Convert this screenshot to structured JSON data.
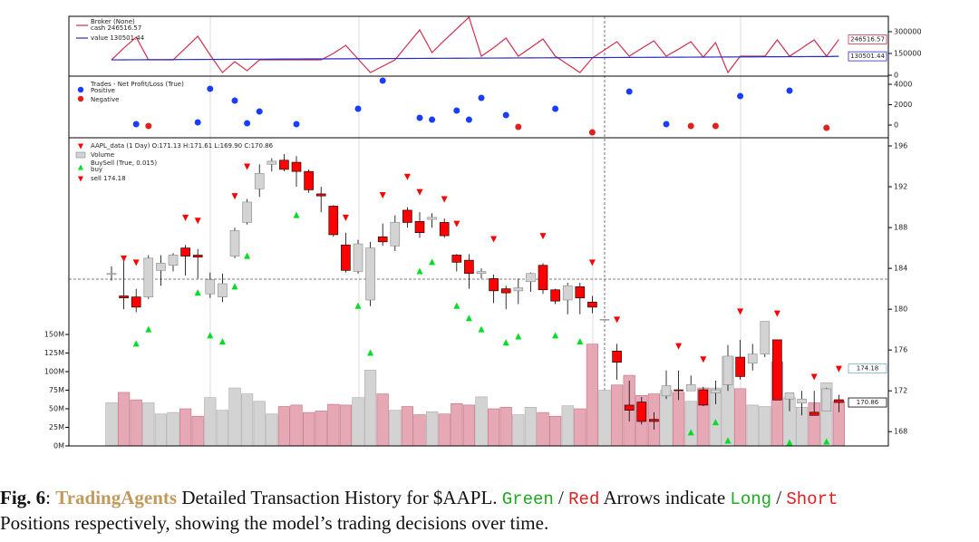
{
  "chart_data": [
    {
      "type": "line",
      "title": "Broker (None)",
      "ylim": [
        -6000,
        406000
      ],
      "yticks": [
        0,
        150000,
        300000
      ],
      "series": [
        {
          "name": "cash 246516.57",
          "color": "#d0304e",
          "values": [
            106250,
            187000,
            262500,
            106250,
            106250,
            106250,
            187000,
            268750,
            140000,
            18750,
            93750,
            31250,
            106250,
            106250,
            106250,
            106250,
            106250,
            106250,
            150000,
            206250,
            112000,
            18750,
            62000,
            106250,
            210000,
            312500,
            156250,
            240000,
            320000,
            400000,
            131250,
            190000,
            256250,
            131250,
            190000,
            250000,
            131250,
            75000,
            18750,
            118750,
            175000,
            231250,
            131250,
            185000,
            237500,
            131250,
            180000,
            231250,
            125000,
            225000,
            18750,
            131250,
            131250,
            131250,
            243750,
            131250,
            187000,
            243750,
            131250,
            246516.57
          ]
        },
        {
          "name": "value 130501.44",
          "color": "#2a2ac0",
          "values": [
            106000,
            106400,
            106800,
            107200,
            107600,
            108000,
            108400,
            108800,
            109200,
            109600,
            110000,
            110400,
            110800,
            111200,
            111600,
            112000,
            112400,
            112800,
            113200,
            113600,
            114000,
            114400,
            114800,
            115200,
            115600,
            116000,
            116400,
            116800,
            117200,
            117600,
            118000,
            118400,
            118800,
            119200,
            119600,
            120000,
            120400,
            120800,
            121200,
            121600,
            122000,
            122400,
            122800,
            123200,
            123600,
            124000,
            124400,
            124800,
            125200,
            125600,
            126000,
            126400,
            126800,
            127200,
            127600,
            128000,
            128400,
            128800,
            129200,
            130501.44
          ]
        }
      ]
    },
    {
      "type": "scatter",
      "title": "Trades - Net Profit/Loss (True)",
      "ylim": [
        -1244,
        4800
      ],
      "yticks": [
        0,
        2000,
        4000
      ],
      "series": [
        {
          "name": "Positive",
          "color": "#1a3cff",
          "values": [
            null,
            null,
            90,
            null,
            null,
            null,
            null,
            270,
            3560,
            null,
            2400,
            180,
            1330,
            null,
            null,
            90,
            null,
            null,
            null,
            null,
            1600,
            null,
            4360,
            null,
            null,
            710,
            530,
            null,
            1420,
            530,
            2670,
            null,
            980,
            null,
            null,
            null,
            1600,
            null,
            null,
            null,
            null,
            null,
            3290,
            null,
            null,
            90,
            null,
            null,
            null,
            null,
            null,
            2840,
            null,
            null,
            null,
            3380,
            null,
            null,
            null,
            null
          ]
        },
        {
          "name": "Negative",
          "color": "#e0201c",
          "values": [
            null,
            null,
            null,
            -90,
            null,
            null,
            null,
            null,
            null,
            null,
            null,
            null,
            null,
            null,
            null,
            null,
            null,
            null,
            null,
            null,
            null,
            null,
            null,
            null,
            null,
            null,
            null,
            null,
            null,
            null,
            null,
            null,
            null,
            -180,
            null,
            null,
            null,
            null,
            null,
            -710,
            null,
            null,
            null,
            null,
            null,
            null,
            null,
            -90,
            null,
            -90,
            null,
            null,
            null,
            null,
            null,
            null,
            null,
            null,
            -270,
            null
          ]
        }
      ]
    },
    {
      "type": "candlestick",
      "title": "AAPL_data (1 Day) O:171.13 H:171.61 L:169.90 C:170.86",
      "legend": [
        "Volume",
        "BuySell (True, 0.015)",
        "buy",
        "sell 174.18"
      ],
      "ylim": [
        166.6,
        196.8
      ],
      "yticks": [
        168,
        172,
        176,
        180,
        184,
        188,
        192,
        196
      ],
      "y2lim": [
        0,
        414.6
      ],
      "y2ticks": [
        {
          "value": 0,
          "label": "0M"
        },
        {
          "value": 25,
          "label": "25M"
        },
        {
          "value": 50,
          "label": "50M"
        },
        {
          "value": 75,
          "label": "75M"
        },
        {
          "value": 100,
          "label": "100M"
        },
        {
          "value": 125,
          "label": "125M"
        },
        {
          "value": 150,
          "label": "150M"
        }
      ],
      "open": [
        183.4,
        181.3,
        181.2,
        181.2,
        183.8,
        184.3,
        186.0,
        185.3,
        181.5,
        181.2,
        185.2,
        188.5,
        191.8,
        194.2,
        194.6,
        194.4,
        193.5,
        191.3,
        190.1,
        186.3,
        183.7,
        180.9,
        187.1,
        186.2,
        189.7,
        188.6,
        188.8,
        188.5,
        185.3,
        184.8,
        183.5,
        183.0,
        182.0,
        181.8,
        182.7,
        184.3,
        181.9,
        180.9,
        182.2,
        180.7,
        179.0,
        175.9,
        170.6,
        170.9,
        169.2,
        171.5,
        172.1,
        172.0,
        172.1,
        171.8,
        172.6,
        175.3,
        174.7,
        175.6,
        177.0,
        171.2,
        170.8,
        169.9,
        170.0,
        171.13
      ],
      "high": [
        184.2,
        184.8,
        182.0,
        185.3,
        185.3,
        185.5,
        186.3,
        185.9,
        183.6,
        183.5,
        188.0,
        190.8,
        194.2,
        194.8,
        195.2,
        195.0,
        193.7,
        192.0,
        190.2,
        187.5,
        186.8,
        186.6,
        188.4,
        189.2,
        190.0,
        189.5,
        189.4,
        188.9,
        185.4,
        185.4,
        184.0,
        183.4,
        182.3,
        183.0,
        183.6,
        184.5,
        182.0,
        182.6,
        182.6,
        181.3,
        179.0,
        176.6,
        173.0,
        171.4,
        169.9,
        174.0,
        174.0,
        173.5,
        172.4,
        173.0,
        176.5,
        177.0,
        176.6,
        178.8,
        177.0,
        171.8,
        172.0,
        172.0,
        172.3,
        171.61
      ],
      "low": [
        182.8,
        180.0,
        179.7,
        181.0,
        182.3,
        183.7,
        183.3,
        183.0,
        181.1,
        180.7,
        185.0,
        188.3,
        191.0,
        193.5,
        193.5,
        192.0,
        191.4,
        189.5,
        187.1,
        183.6,
        183.5,
        180.3,
        186.2,
        185.7,
        188.0,
        187.0,
        188.0,
        187.0,
        183.7,
        182.0,
        183.0,
        180.6,
        180.0,
        180.5,
        181.7,
        181.5,
        180.5,
        179.5,
        179.5,
        179.6,
        179.0,
        173.1,
        169.0,
        168.7,
        168.2,
        171.2,
        171.1,
        172.0,
        170.5,
        170.7,
        172.0,
        173.1,
        174.0,
        175.3,
        171.1,
        170.0,
        169.6,
        169.6,
        170.0,
        169.9
      ],
      "close": [
        183.5,
        181.1,
        180.2,
        185.0,
        184.5,
        185.3,
        185.2,
        185.1,
        182.9,
        182.5,
        187.7,
        190.5,
        193.3,
        194.5,
        193.7,
        193.5,
        191.7,
        191.1,
        187.3,
        183.8,
        186.4,
        186.0,
        186.6,
        188.5,
        188.5,
        187.5,
        189.0,
        187.2,
        184.6,
        183.5,
        183.7,
        181.8,
        181.6,
        182.1,
        183.5,
        181.9,
        180.8,
        182.3,
        181.1,
        180.2,
        179.0,
        174.8,
        170.1,
        169.0,
        169.0,
        172.5,
        172.0,
        172.6,
        170.6,
        172.1,
        175.4,
        173.4,
        175.6,
        178.8,
        171.1,
        171.8,
        171.2,
        169.6,
        172.2,
        170.86
      ],
      "volume": [
        58,
        72,
        62,
        58,
        43,
        45,
        50,
        40,
        65,
        48,
        78,
        70,
        60,
        43,
        53,
        55,
        45,
        47,
        56,
        55,
        65,
        102,
        70,
        48,
        53,
        42,
        46,
        43,
        57,
        55,
        66,
        50,
        52,
        42,
        52,
        45,
        40,
        54,
        50,
        137,
        75,
        82,
        95,
        68,
        70,
        75,
        72,
        60,
        78,
        78,
        120,
        77,
        55,
        53,
        113,
        65,
        52,
        58,
        85,
        60
      ],
      "buy": [
        null,
        null,
        176.6,
        178.0,
        null,
        null,
        null,
        181.6,
        177.4,
        176.8,
        182.2,
        185.2,
        null,
        null,
        null,
        189.2,
        null,
        null,
        null,
        null,
        180.3,
        175.7,
        null,
        null,
        null,
        183.7,
        184.6,
        null,
        180.3,
        179.1,
        178.0,
        null,
        176.7,
        177.3,
        null,
        null,
        177.4,
        null,
        176.8,
        null,
        null,
        null,
        null,
        null,
        null,
        null,
        null,
        167.9,
        null,
        168.9,
        167.1,
        null,
        null,
        null,
        null,
        166.9,
        null,
        null,
        167.0,
        null
      ],
      "sell": [
        null,
        185.0,
        184.6,
        null,
        null,
        null,
        189.0,
        188.7,
        null,
        null,
        191.1,
        194.0,
        null,
        null,
        null,
        null,
        null,
        null,
        null,
        189.0,
        null,
        null,
        191.2,
        null,
        193.0,
        191.5,
        null,
        190.8,
        188.4,
        null,
        null,
        186.9,
        null,
        null,
        null,
        187.2,
        null,
        null,
        null,
        184.6,
        null,
        179.0,
        null,
        null,
        null,
        null,
        176.4,
        null,
        175.1,
        null,
        null,
        179.8,
        null,
        null,
        179.6,
        null,
        null,
        173.4,
        null,
        174.18
      ],
      "up_color": "#d3d3d3",
      "down_color": "#ff0000",
      "buy_color": "#00dd22",
      "sell_color": "#ff0000"
    }
  ],
  "caption": {
    "fig": "Fig. 6",
    "sep": ":",
    "name": "TradingAgents",
    "text1": "Detailed Transaction History for $AAPL.",
    "green": "Green",
    "slash1": "/",
    "red": "Red",
    "text2": "Arrows indicate",
    "long": "Long",
    "slash2": "/",
    "short": "Short",
    "line2": "Positions respectively, showing the model’s trading decisions over time."
  }
}
